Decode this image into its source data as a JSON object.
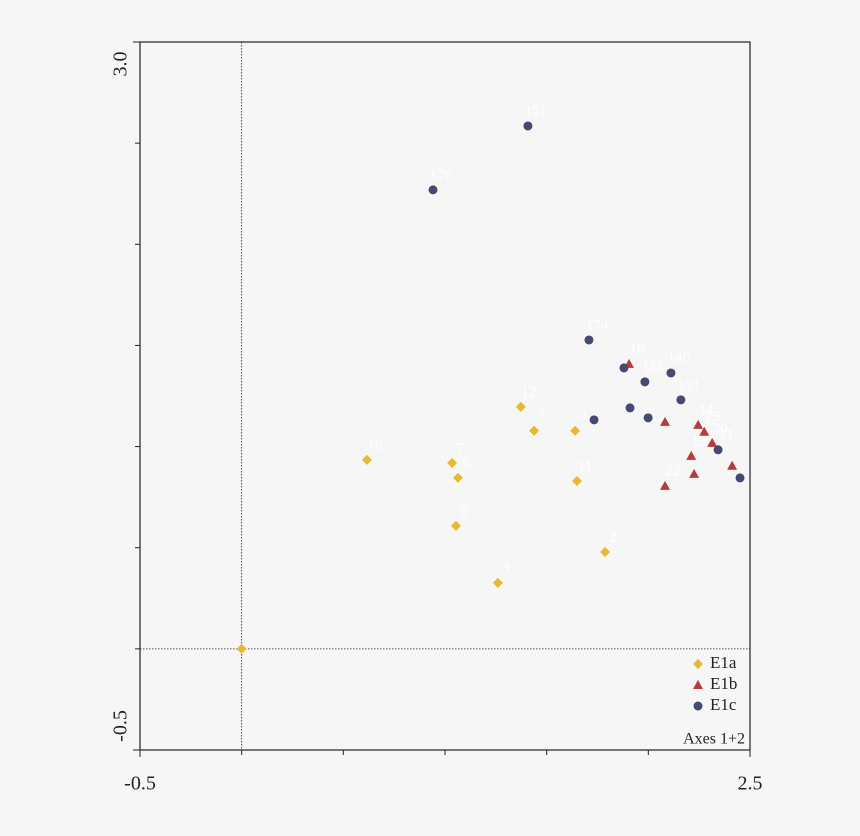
{
  "chart_data": {
    "type": "scatter",
    "xlim": [
      -0.5,
      2.5
    ],
    "ylim": [
      -0.5,
      3.0
    ],
    "xticks": [
      -0.5,
      2.5
    ],
    "yticks": [
      -0.5,
      {
        "value": 3.0,
        "label": "3.0"
      }
    ],
    "xticks_minor": [
      0,
      0.5,
      1,
      1.5,
      2
    ],
    "yticks_minor": [
      0,
      0.5,
      1,
      1.5,
      2,
      2.5
    ],
    "zero_lines": true,
    "legend": "lower right",
    "annotation": "Axes 1+2",
    "series": [
      {
        "name": "E1a",
        "color": "#e8b830",
        "marker": "diamond",
        "x": [
          0,
          0.616,
          1.035,
          1.064,
          1.054,
          1.26,
          1.373,
          1.438,
          1.64,
          1.649,
          1.787
        ],
        "values": [
          0,
          0.934,
          0.919,
          0.845,
          0.608,
          0.326,
          1.196,
          1.078,
          1.078,
          0.83,
          0.479
        ],
        "point_labels": [
          null,
          "10",
          "7",
          "6",
          "8",
          "3",
          "12",
          "5",
          "4",
          "11",
          "2"
        ]
      },
      {
        "name": "E1b",
        "color": "#b83a3a",
        "marker": "triangle",
        "x": [
          1.905,
          2.082,
          2.245,
          2.275,
          2.314,
          2.211,
          2.225,
          2.082,
          2.412
        ],
        "values": [
          1.409,
          1.122,
          1.107,
          1.073,
          1.018,
          0.954,
          0.865,
          0.806,
          0.905
        ],
        "point_labels": [
          "16",
          null,
          "14",
          "15",
          "20",
          "13",
          null,
          "22",
          null
        ]
      },
      {
        "name": "E1c",
        "color": "#464a72",
        "marker": "circle",
        "x": [
          1.408,
          0.941,
          1.708,
          1.88,
          1.983,
          2.111,
          2.16,
          1.91,
          1.999,
          1.733,
          2.343,
          2.451
        ],
        "values": [
          2.585,
          2.269,
          1.527,
          1.389,
          1.32,
          1.364,
          1.231,
          1.191,
          1.142,
          1.132,
          0.984,
          0.845
        ],
        "point_labels": [
          "151",
          "176",
          "174",
          null,
          "155",
          "146",
          "131",
          null,
          null,
          null,
          "21",
          null
        ]
      }
    ]
  }
}
